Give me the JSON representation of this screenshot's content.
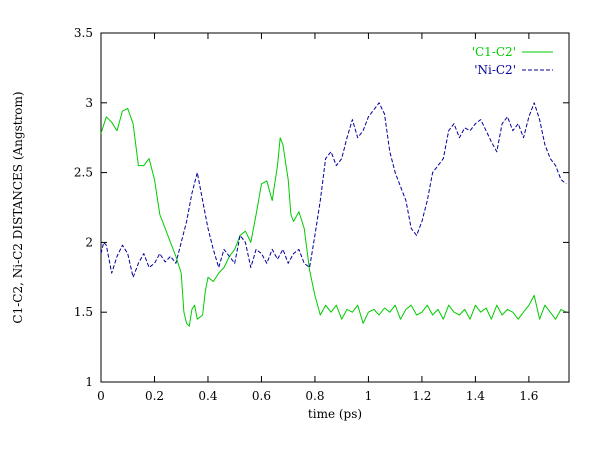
{
  "chart_data": {
    "type": "line",
    "title": "",
    "xlabel": "time (ps)",
    "ylabel": "C1-C2, Ni-C2 DISTANCES (Angstrom)",
    "xlim": [
      0,
      1.75
    ],
    "ylim": [
      1,
      3.5
    ],
    "x_ticks": [
      "0",
      "0.2",
      "0.4",
      "0.6",
      "0.8",
      "1",
      "1.2",
      "1.4",
      "1.6"
    ],
    "y_ticks": [
      "1",
      "1.5",
      "2",
      "2.5",
      "3",
      "3.5"
    ],
    "grid": false,
    "legend_position": "top-right",
    "series": [
      {
        "name": "'C1-C2'",
        "color": "#00cc00",
        "dash": "solid",
        "points": [
          [
            0.0,
            2.78
          ],
          [
            0.02,
            2.9
          ],
          [
            0.04,
            2.86
          ],
          [
            0.06,
            2.8
          ],
          [
            0.08,
            2.94
          ],
          [
            0.1,
            2.96
          ],
          [
            0.12,
            2.85
          ],
          [
            0.14,
            2.55
          ],
          [
            0.16,
            2.55
          ],
          [
            0.18,
            2.6
          ],
          [
            0.2,
            2.45
          ],
          [
            0.22,
            2.2
          ],
          [
            0.24,
            2.1
          ],
          [
            0.26,
            2.0
          ],
          [
            0.28,
            1.9
          ],
          [
            0.3,
            1.78
          ],
          [
            0.31,
            1.5
          ],
          [
            0.32,
            1.42
          ],
          [
            0.33,
            1.4
          ],
          [
            0.34,
            1.52
          ],
          [
            0.35,
            1.55
          ],
          [
            0.36,
            1.45
          ],
          [
            0.38,
            1.48
          ],
          [
            0.39,
            1.65
          ],
          [
            0.4,
            1.75
          ],
          [
            0.42,
            1.72
          ],
          [
            0.44,
            1.78
          ],
          [
            0.46,
            1.82
          ],
          [
            0.48,
            1.9
          ],
          [
            0.5,
            1.95
          ],
          [
            0.52,
            2.05
          ],
          [
            0.54,
            2.08
          ],
          [
            0.56,
            2.0
          ],
          [
            0.58,
            2.2
          ],
          [
            0.6,
            2.42
          ],
          [
            0.62,
            2.44
          ],
          [
            0.64,
            2.3
          ],
          [
            0.66,
            2.55
          ],
          [
            0.67,
            2.75
          ],
          [
            0.68,
            2.7
          ],
          [
            0.7,
            2.45
          ],
          [
            0.71,
            2.2
          ],
          [
            0.72,
            2.15
          ],
          [
            0.74,
            2.22
          ],
          [
            0.76,
            2.1
          ],
          [
            0.78,
            1.8
          ],
          [
            0.8,
            1.62
          ],
          [
            0.82,
            1.48
          ],
          [
            0.84,
            1.55
          ],
          [
            0.86,
            1.5
          ],
          [
            0.88,
            1.55
          ],
          [
            0.9,
            1.45
          ],
          [
            0.92,
            1.52
          ],
          [
            0.94,
            1.5
          ],
          [
            0.96,
            1.55
          ],
          [
            0.98,
            1.42
          ],
          [
            1.0,
            1.5
          ],
          [
            1.02,
            1.52
          ],
          [
            1.04,
            1.48
          ],
          [
            1.06,
            1.53
          ],
          [
            1.08,
            1.5
          ],
          [
            1.1,
            1.55
          ],
          [
            1.12,
            1.45
          ],
          [
            1.14,
            1.52
          ],
          [
            1.16,
            1.55
          ],
          [
            1.18,
            1.48
          ],
          [
            1.2,
            1.5
          ],
          [
            1.22,
            1.55
          ],
          [
            1.24,
            1.48
          ],
          [
            1.26,
            1.52
          ],
          [
            1.28,
            1.45
          ],
          [
            1.3,
            1.55
          ],
          [
            1.32,
            1.5
          ],
          [
            1.34,
            1.48
          ],
          [
            1.36,
            1.52
          ],
          [
            1.38,
            1.45
          ],
          [
            1.4,
            1.55
          ],
          [
            1.42,
            1.5
          ],
          [
            1.44,
            1.53
          ],
          [
            1.46,
            1.45
          ],
          [
            1.48,
            1.55
          ],
          [
            1.5,
            1.48
          ],
          [
            1.52,
            1.52
          ],
          [
            1.54,
            1.5
          ],
          [
            1.56,
            1.45
          ],
          [
            1.58,
            1.5
          ],
          [
            1.6,
            1.55
          ],
          [
            1.62,
            1.62
          ],
          [
            1.64,
            1.45
          ],
          [
            1.66,
            1.55
          ],
          [
            1.68,
            1.5
          ],
          [
            1.7,
            1.45
          ],
          [
            1.72,
            1.52
          ],
          [
            1.74,
            1.5
          ]
        ]
      },
      {
        "name": "'Ni-C2'",
        "color": "#000099",
        "dash": "dashed",
        "points": [
          [
            0.0,
            1.92
          ],
          [
            0.01,
            2.0
          ],
          [
            0.02,
            1.98
          ],
          [
            0.04,
            1.78
          ],
          [
            0.06,
            1.9
          ],
          [
            0.08,
            1.98
          ],
          [
            0.1,
            1.92
          ],
          [
            0.12,
            1.75
          ],
          [
            0.14,
            1.85
          ],
          [
            0.16,
            1.92
          ],
          [
            0.18,
            1.82
          ],
          [
            0.2,
            1.85
          ],
          [
            0.22,
            1.92
          ],
          [
            0.24,
            1.86
          ],
          [
            0.26,
            1.9
          ],
          [
            0.28,
            1.85
          ],
          [
            0.3,
            2.0
          ],
          [
            0.32,
            2.15
          ],
          [
            0.34,
            2.35
          ],
          [
            0.36,
            2.5
          ],
          [
            0.38,
            2.3
          ],
          [
            0.4,
            2.1
          ],
          [
            0.42,
            1.95
          ],
          [
            0.44,
            1.82
          ],
          [
            0.46,
            1.95
          ],
          [
            0.48,
            1.9
          ],
          [
            0.5,
            1.85
          ],
          [
            0.52,
            2.05
          ],
          [
            0.54,
            2.0
          ],
          [
            0.56,
            1.82
          ],
          [
            0.58,
            1.95
          ],
          [
            0.6,
            1.92
          ],
          [
            0.62,
            1.85
          ],
          [
            0.64,
            1.95
          ],
          [
            0.66,
            1.88
          ],
          [
            0.68,
            1.95
          ],
          [
            0.7,
            1.85
          ],
          [
            0.72,
            1.92
          ],
          [
            0.74,
            1.95
          ],
          [
            0.76,
            1.85
          ],
          [
            0.78,
            1.82
          ],
          [
            0.8,
            2.05
          ],
          [
            0.82,
            2.3
          ],
          [
            0.84,
            2.6
          ],
          [
            0.86,
            2.65
          ],
          [
            0.88,
            2.55
          ],
          [
            0.9,
            2.6
          ],
          [
            0.92,
            2.75
          ],
          [
            0.94,
            2.88
          ],
          [
            0.96,
            2.75
          ],
          [
            0.98,
            2.8
          ],
          [
            1.0,
            2.9
          ],
          [
            1.02,
            2.95
          ],
          [
            1.04,
            3.0
          ],
          [
            1.06,
            2.92
          ],
          [
            1.08,
            2.65
          ],
          [
            1.1,
            2.5
          ],
          [
            1.12,
            2.4
          ],
          [
            1.14,
            2.3
          ],
          [
            1.16,
            2.1
          ],
          [
            1.18,
            2.05
          ],
          [
            1.2,
            2.15
          ],
          [
            1.22,
            2.3
          ],
          [
            1.24,
            2.5
          ],
          [
            1.26,
            2.55
          ],
          [
            1.28,
            2.6
          ],
          [
            1.3,
            2.8
          ],
          [
            1.32,
            2.85
          ],
          [
            1.34,
            2.75
          ],
          [
            1.36,
            2.82
          ],
          [
            1.38,
            2.8
          ],
          [
            1.4,
            2.85
          ],
          [
            1.42,
            2.88
          ],
          [
            1.44,
            2.8
          ],
          [
            1.46,
            2.72
          ],
          [
            1.48,
            2.65
          ],
          [
            1.5,
            2.85
          ],
          [
            1.52,
            2.9
          ],
          [
            1.54,
            2.8
          ],
          [
            1.56,
            2.85
          ],
          [
            1.58,
            2.75
          ],
          [
            1.6,
            2.9
          ],
          [
            1.62,
            3.0
          ],
          [
            1.64,
            2.88
          ],
          [
            1.66,
            2.7
          ],
          [
            1.68,
            2.6
          ],
          [
            1.7,
            2.55
          ],
          [
            1.72,
            2.45
          ],
          [
            1.74,
            2.42
          ]
        ]
      }
    ]
  }
}
